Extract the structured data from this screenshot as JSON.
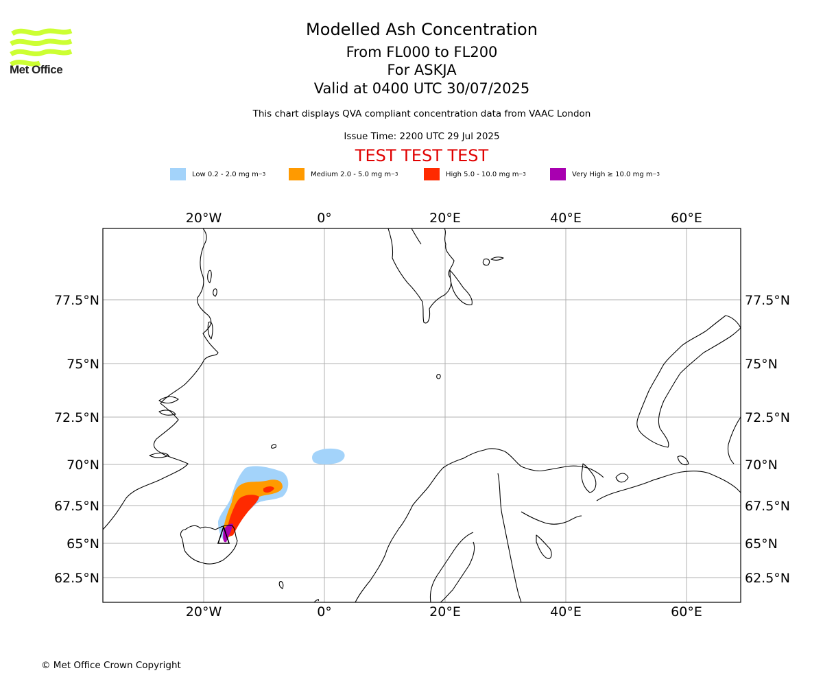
{
  "header": {
    "title": "Modelled Ash Concentration",
    "level_range": "From FL000 to FL200",
    "volcano": "For ASKJA",
    "valid_time": "Valid at 0400 UTC 30/07/2025",
    "description": "This chart displays QVA compliant concentration data from VAAC London",
    "issue_time": "Issue Time: 2200 UTC 29 Jul 2025",
    "test_banner": "TEST TEST TEST"
  },
  "logo": {
    "text": "Met Office",
    "color": "#ccff33"
  },
  "legend": [
    {
      "label": "Low 0.2 - 2.0 mg m",
      "unit_sup": "−3",
      "color": "#a3d3fa"
    },
    {
      "label": "Medium 2.0 - 5.0 mg m",
      "unit_sup": "−3",
      "color": "#ff9a00"
    },
    {
      "label": "High 5.0 - 10.0 mg m",
      "unit_sup": "−3",
      "color": "#ff2a00"
    },
    {
      "label": "Very High ≥ 10.0 mg m",
      "unit_sup": "−3",
      "color": "#a800b0"
    }
  ],
  "map": {
    "longitude_ticks": [
      "20°W",
      "0°",
      "20°E",
      "40°E",
      "60°E"
    ],
    "latitude_ticks": [
      "77.5°N",
      "75°N",
      "72.5°N",
      "70°N",
      "67.5°N",
      "65°N",
      "62.5°N"
    ],
    "gridlines": true,
    "volcano_marker": "triangle"
  },
  "footer": {
    "copyright": "© Met Office Crown Copyright"
  }
}
